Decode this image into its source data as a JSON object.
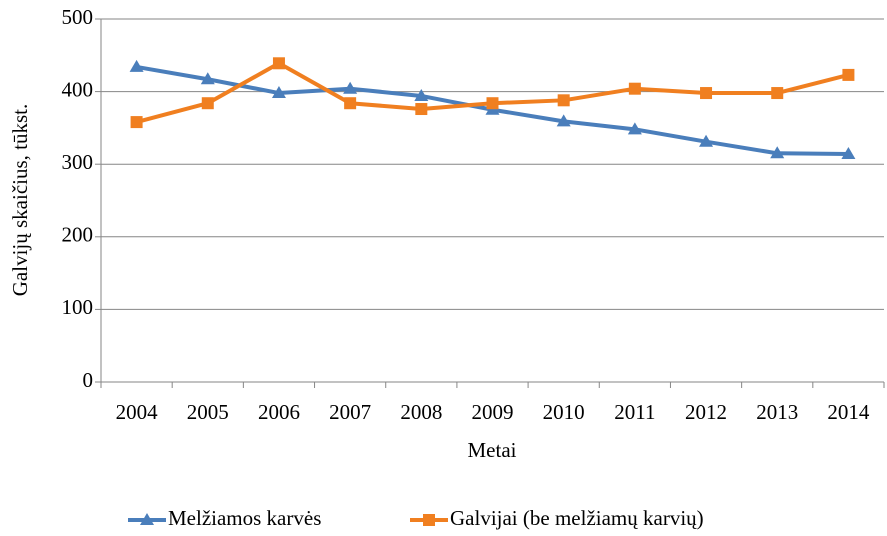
{
  "chart_data": {
    "type": "line",
    "y_label": "Galvijų skaičius, tūkst.",
    "x_label": "Metai",
    "categories": [
      "2004",
      "2005",
      "2006",
      "2007",
      "2008",
      "2009",
      "2010",
      "2011",
      "2012",
      "2013",
      "2014"
    ],
    "series": [
      {
        "name": "Melžiamos karvės",
        "color": "#4a7ebb",
        "marker": "triangle",
        "values": [
          434,
          417,
          398,
          404,
          394,
          375,
          359,
          348,
          331,
          315,
          314
        ]
      },
      {
        "name": "Galvijai (be melžiamų karvių)",
        "color": "#f07f20",
        "marker": "square",
        "values": [
          358,
          384,
          439,
          384,
          376,
          384,
          388,
          404,
          398,
          398,
          423
        ]
      }
    ],
    "ylim": [
      0,
      500
    ],
    "yticks": [
      0,
      100,
      200,
      300,
      400,
      500
    ],
    "grid": true,
    "legend": "bottom"
  }
}
